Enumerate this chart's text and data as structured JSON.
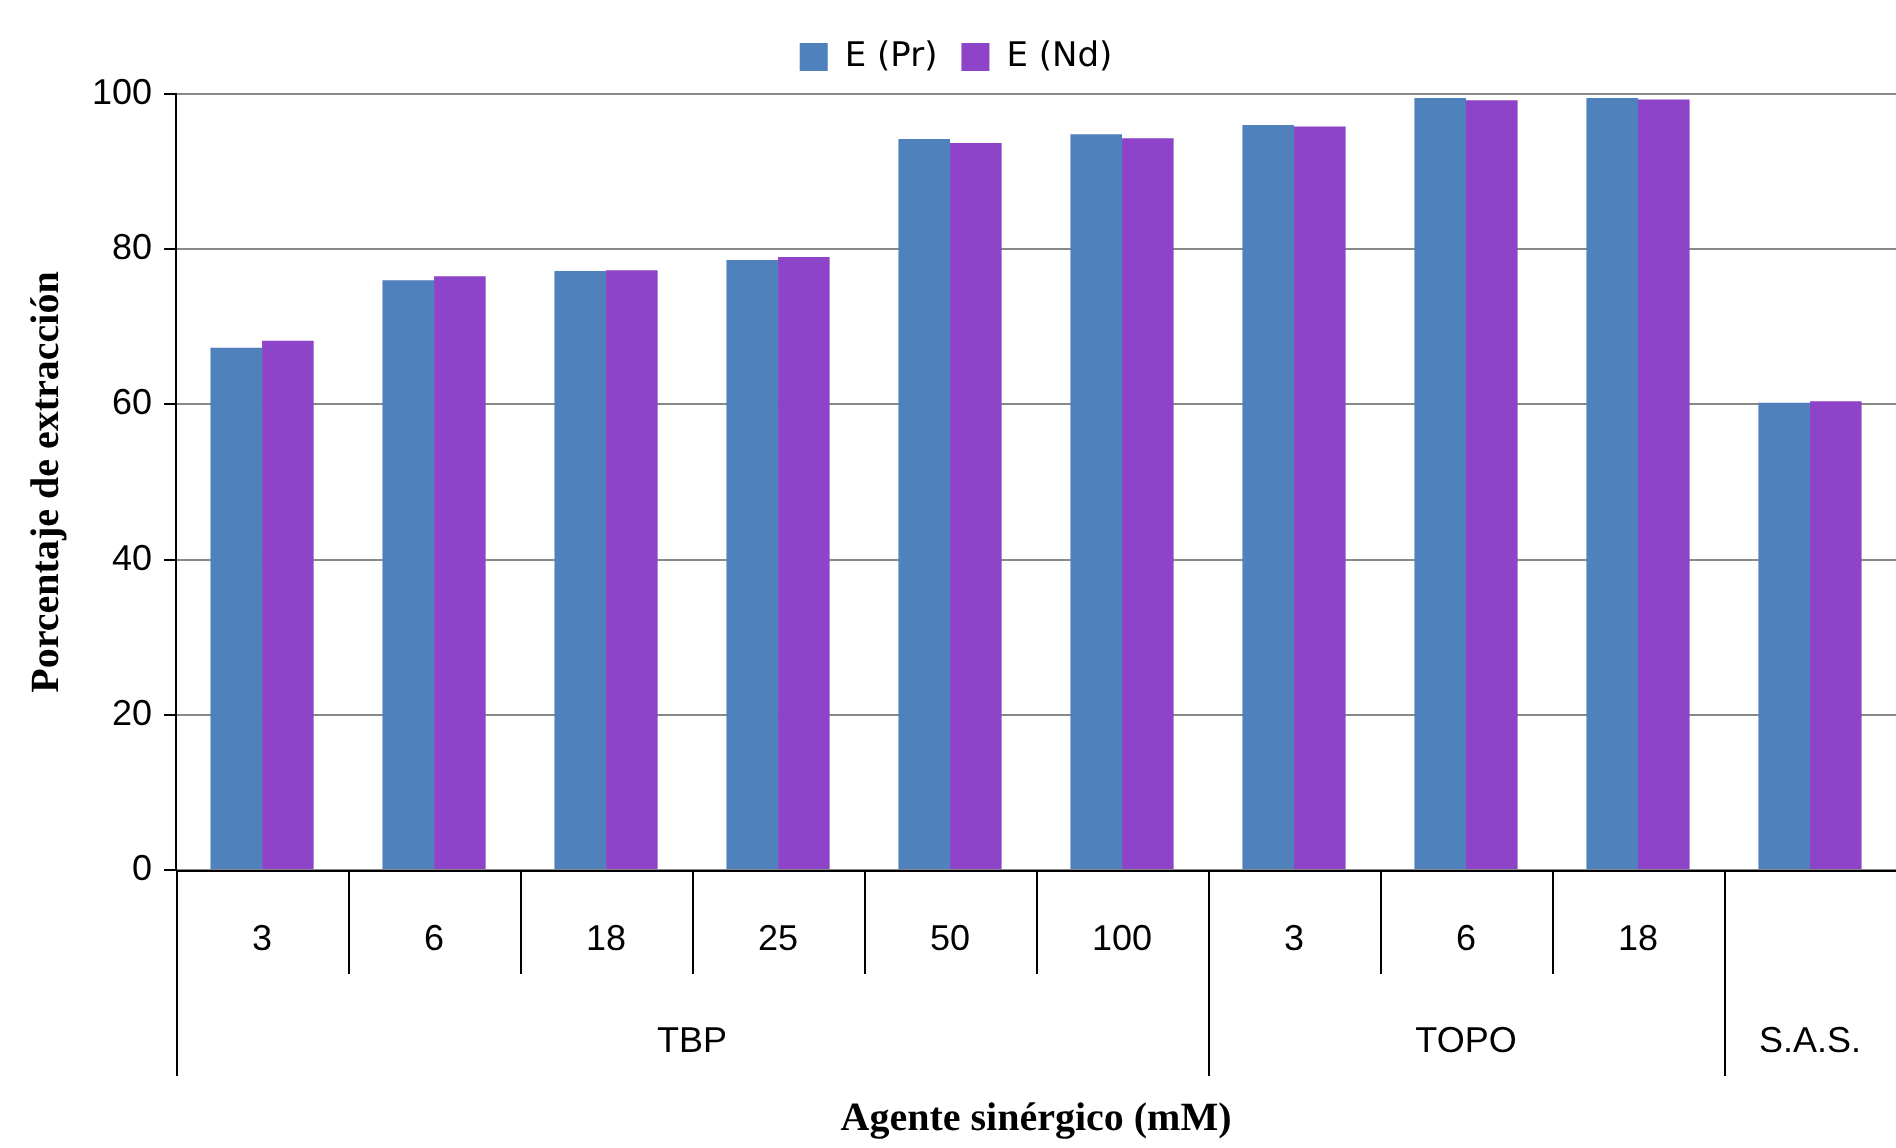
{
  "chart_data": {
    "type": "bar",
    "xlabel": "Agente sinérgico (mM)",
    "ylabel": "Porcentaje de extracción",
    "categories": [
      "3",
      "6",
      "18",
      "25",
      "50",
      "100",
      "3",
      "6",
      "18",
      null
    ],
    "annotations": [
      "TBP",
      "TOPO",
      "S.A.S."
    ],
    "series": [
      {
        "name": "E (Pr)",
        "color": "#4f81bd",
        "values": [
          67.3,
          76,
          77.2,
          78.6,
          94.2,
          94.8,
          96,
          99.5,
          99.5,
          60.2
        ]
      },
      {
        "name": "E (Nd)",
        "color": "#8e44c8",
        "values": [
          68.2,
          76.5,
          77.3,
          79,
          93.7,
          94.3,
          95.8,
          99.2,
          99.3,
          60.4
        ]
      }
    ],
    "ylim": [
      0,
      100
    ],
    "yticks": [
      0,
      20,
      40,
      60,
      80,
      100
    ],
    "grid": "y",
    "legend": "top"
  }
}
